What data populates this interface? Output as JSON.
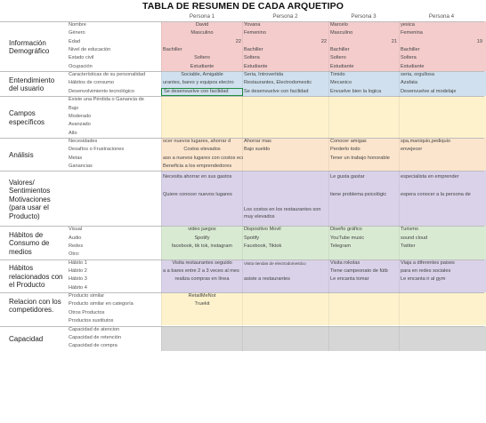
{
  "title": "TABLA DE RESUMEN DE CADA ARQUETIPO",
  "personas": [
    "Persona 1",
    "Persona 2",
    "Persona 3",
    "Persona 4"
  ],
  "colors": {
    "pink": "#f4cccc",
    "blue": "#d0e0ee",
    "yellow": "#fdf2cc",
    "orange": "#fce5cd",
    "purple": "#d9d2e9",
    "green": "#d9ead3",
    "gray": "#d6d6d6"
  },
  "sections": [
    {
      "name": "Información Demográfico",
      "color": "pink",
      "rows": [
        {
          "label": "Nombre",
          "cells": [
            {
              "v": "David",
              "a": "c"
            },
            {
              "v": "Yovana",
              "a": "l"
            },
            {
              "v": "Marcelo",
              "a": "l"
            },
            {
              "v": "yesica",
              "a": "l"
            }
          ]
        },
        {
          "label": "Género",
          "cells": [
            {
              "v": "Masculino",
              "a": "c"
            },
            {
              "v": "Femenino",
              "a": "l"
            },
            {
              "v": "Masculino",
              "a": "l"
            },
            {
              "v": "Femenina",
              "a": "l"
            }
          ]
        },
        {
          "label": "Edad",
          "cells": [
            {
              "v": "22",
              "a": "r"
            },
            {
              "v": "22",
              "a": "r"
            },
            {
              "v": "21",
              "a": "r"
            },
            {
              "v": "19",
              "a": "r"
            }
          ]
        },
        {
          "label": "Nivel de educación",
          "cells": [
            {
              "v": "Bachiller",
              "a": "l"
            },
            {
              "v": "Bachiller",
              "a": "l"
            },
            {
              "v": "Bachiller",
              "a": "l"
            },
            {
              "v": "Bachiller",
              "a": "l"
            }
          ]
        },
        {
          "label": "Estado civil",
          "cells": [
            {
              "v": "Soltero",
              "a": "c"
            },
            {
              "v": "Soltera",
              "a": "l"
            },
            {
              "v": "Soltero",
              "a": "l"
            },
            {
              "v": "Soltera",
              "a": "l"
            }
          ]
        },
        {
          "label": "Ocupación",
          "cells": [
            {
              "v": "Estudiante",
              "a": "c"
            },
            {
              "v": "Estudiante",
              "a": "l"
            },
            {
              "v": "Estudiante",
              "a": "l"
            },
            {
              "v": "Estudiante",
              "a": "l"
            }
          ]
        }
      ]
    },
    {
      "name": "Entendimiento del usuario",
      "color": "blue",
      "rows": [
        {
          "label": "Características de su personalidad",
          "cells": [
            {
              "v": "Sociable, Amigable",
              "a": "c"
            },
            {
              "v": "Seria, Introvertida",
              "a": "l"
            },
            {
              "v": "Timido",
              "a": "l"
            },
            {
              "v": "seria, orgullosa",
              "a": "l"
            }
          ]
        },
        {
          "label": "Hábitos de consumo",
          "cells": [
            {
              "v": "urantes, bares y equipos electro",
              "a": "l"
            },
            {
              "v": "Restaurantes, Electrodomestic",
              "a": "l"
            },
            {
              "v": "Mecanico",
              "a": "l"
            },
            {
              "v": "Azafata",
              "a": "l"
            }
          ]
        },
        {
          "label": "Desenvolvimiento tecnológico",
          "cells": [
            {
              "v": "Se desenvuelve con facilidad",
              "a": "l",
              "hl": true
            },
            {
              "v": "Se desenvuelve con facilidad",
              "a": "l"
            },
            {
              "v": "Envuelve bien la logica",
              "a": "l"
            },
            {
              "v": "Desenvuelve al modelaje",
              "a": "l"
            }
          ]
        }
      ]
    },
    {
      "name": "Campos específicos",
      "color": "yellow",
      "rows": [
        {
          "label": "Existe una Pérdida o Ganancia de",
          "cells": [
            {
              "v": ""
            },
            {
              "v": ""
            },
            {
              "v": ""
            },
            {
              "v": ""
            }
          ]
        },
        {
          "label": "Bajo",
          "cells": [
            {
              "v": ""
            },
            {
              "v": ""
            },
            {
              "v": ""
            },
            {
              "v": ""
            }
          ]
        },
        {
          "label": "Moderado",
          "cells": [
            {
              "v": ""
            },
            {
              "v": ""
            },
            {
              "v": ""
            },
            {
              "v": ""
            }
          ]
        },
        {
          "label": "Avanzado",
          "cells": [
            {
              "v": ""
            },
            {
              "v": ""
            },
            {
              "v": ""
            },
            {
              "v": ""
            }
          ]
        },
        {
          "label": "Alto",
          "cells": [
            {
              "v": ""
            },
            {
              "v": ""
            },
            {
              "v": ""
            },
            {
              "v": ""
            }
          ]
        }
      ]
    },
    {
      "name": "Análisis",
      "color": "orange",
      "rows": [
        {
          "label": "Necesidades",
          "cells": [
            {
              "v": "ocer nuevos lugares, ahorrar d",
              "a": "l"
            },
            {
              "v": "Ahorrar mas",
              "a": "l"
            },
            {
              "v": "Conocer amigas",
              "a": "l"
            },
            {
              "v": "spa,maniquio,pediquio",
              "a": "l"
            }
          ]
        },
        {
          "label": "Desafíos o Frustraciones",
          "cells": [
            {
              "v": "Costos elevados",
              "a": "c"
            },
            {
              "v": "Bajo sueldo",
              "a": "l"
            },
            {
              "v": "Perderlo todo",
              "a": "l"
            },
            {
              "v": "envejecer",
              "a": "l"
            }
          ]
        },
        {
          "label": "Metas",
          "cells": [
            {
              "v": "aso a nuevos lugares con costos economicos",
              "a": "l"
            },
            {
              "v": "",
              "a": "l"
            },
            {
              "v": "Tener un trabajo honorable",
              "a": "l"
            },
            {
              "v": ""
            }
          ]
        },
        {
          "label": "Ganancias",
          "cells": [
            {
              "v": "Beneficia a los emprendedores",
              "a": "l"
            },
            {
              "v": ""
            },
            {
              "v": ""
            },
            {
              "v": ""
            }
          ]
        }
      ]
    },
    {
      "name": "Valores/ Sentimientos Motivaciones (para usar el Producto)",
      "color": "purple",
      "rows": [
        {
          "label": "",
          "h": 20,
          "cells": [
            {
              "v": "Necesita ahorrar en sus gastos",
              "a": "l",
              "t": 3
            },
            {
              "v": ""
            },
            {
              "v": "Le gusta gastar",
              "a": "l",
              "t": 3
            },
            {
              "v": "especialista en emprender",
              "a": "l",
              "t": 3
            }
          ]
        },
        {
          "label": "",
          "h": 20,
          "cells": [
            {
              "v": "Quiere conocer nuevos lugares",
              "a": "l",
              "t": 3
            },
            {
              "v": ""
            },
            {
              "v": "tiene problema psicológic",
              "a": "l",
              "t": 3
            },
            {
              "v": "espera conocer a la persona de",
              "a": "l",
              "t": 3
            }
          ]
        },
        {
          "label": "",
          "h": 22,
          "cells": [
            {
              "v": ""
            },
            {
              "v": "Los costos en los restaurantes son muy elevados",
              "a": "l",
              "t": 0,
              "wrap": true
            },
            {
              "v": ""
            },
            {
              "v": ""
            }
          ]
        }
      ]
    },
    {
      "name": "Hábitos de Consumo de medios",
      "color": "green",
      "rows": [
        {
          "label": "Visual",
          "cells": [
            {
              "v": "video juegos",
              "a": "c"
            },
            {
              "v": "Dispositivo Movil",
              "a": "l"
            },
            {
              "v": "Diseño gráfico",
              "a": "l"
            },
            {
              "v": "Turismo",
              "a": "l"
            }
          ]
        },
        {
          "label": "Audio",
          "cells": [
            {
              "v": "Spotify",
              "a": "c"
            },
            {
              "v": "Spotify",
              "a": "l"
            },
            {
              "v": "YouTube music",
              "a": "l"
            },
            {
              "v": "sound cloud",
              "a": "l"
            }
          ]
        },
        {
          "label": "Redes",
          "cells": [
            {
              "v": "facebook, tik tok, instagram",
              "a": "c"
            },
            {
              "v": "Facebook, Tiktok",
              "a": "l"
            },
            {
              "v": "Telegram",
              "a": "l"
            },
            {
              "v": "Twitter",
              "a": "l"
            }
          ]
        },
        {
          "label": "Otro:",
          "cells": [
            {
              "v": ""
            },
            {
              "v": ""
            },
            {
              "v": ""
            },
            {
              "v": ""
            }
          ]
        }
      ]
    },
    {
      "name": "Hábitos relacionados con el Producto",
      "color": "purple",
      "rows": [
        {
          "label": "Hábito 1",
          "cells": [
            {
              "v": "Visita restaurantes seguido",
              "a": "c"
            },
            {
              "v": "Visita tiendas de electrodomestico",
              "a": "l",
              "small": true
            },
            {
              "v": "Visita rokolas",
              "a": "l"
            },
            {
              "v": "Viaja a diferentes paises",
              "a": "l"
            }
          ]
        },
        {
          "label": "Hábito 2",
          "cells": [
            {
              "v": "a a bares entre 2 a 3 veces al mes",
              "a": "l"
            },
            {
              "v": ""
            },
            {
              "v": "Tiene campeonato de fútb",
              "a": "l"
            },
            {
              "v": "para en redes sociales",
              "a": "l"
            }
          ]
        },
        {
          "label": "Hábito 3",
          "cells": [
            {
              "v": "realiza compras en línea",
              "a": "c"
            },
            {
              "v": "asiste a restaurantes",
              "a": "l"
            },
            {
              "v": "Le encanta tomar",
              "a": "l"
            },
            {
              "v": "Le encanta ir al gym",
              "a": "l"
            }
          ]
        },
        {
          "label": "Hábito 4",
          "cells": [
            {
              "v": ""
            },
            {
              "v": ""
            },
            {
              "v": ""
            },
            {
              "v": ""
            }
          ]
        }
      ]
    },
    {
      "name": "Relacion con los competidores.",
      "color": "yellow",
      "rows": [
        {
          "label": "Producto similar",
          "cells": [
            {
              "v": "RetailMeNot",
              "a": "c"
            },
            {
              "v": ""
            },
            {
              "v": ""
            },
            {
              "v": ""
            }
          ]
        },
        {
          "label": "Producto similar en categoría",
          "cells": [
            {
              "v": "Truekit",
              "a": "c"
            },
            {
              "v": ""
            },
            {
              "v": ""
            },
            {
              "v": ""
            }
          ]
        },
        {
          "label": "Otros Productos",
          "cells": [
            {
              "v": ""
            },
            {
              "v": ""
            },
            {
              "v": ""
            },
            {
              "v": ""
            }
          ]
        },
        {
          "label": "Productos sustitutos",
          "cells": [
            {
              "v": ""
            },
            {
              "v": ""
            },
            {
              "v": ""
            },
            {
              "v": ""
            }
          ]
        }
      ]
    },
    {
      "name": "Capacidad",
      "color": "gray",
      "rows": [
        {
          "label": "Capacidad de atencion",
          "cells": [
            {
              "v": ""
            },
            {
              "v": ""
            },
            {
              "v": ""
            },
            {
              "v": ""
            }
          ]
        },
        {
          "label": "Capacidad de retención",
          "cells": [
            {
              "v": ""
            },
            {
              "v": ""
            },
            {
              "v": ""
            },
            {
              "v": ""
            }
          ]
        },
        {
          "label": "Capacidad de compra",
          "cells": [
            {
              "v": ""
            },
            {
              "v": ""
            },
            {
              "v": ""
            },
            {
              "v": ""
            }
          ]
        }
      ]
    }
  ]
}
